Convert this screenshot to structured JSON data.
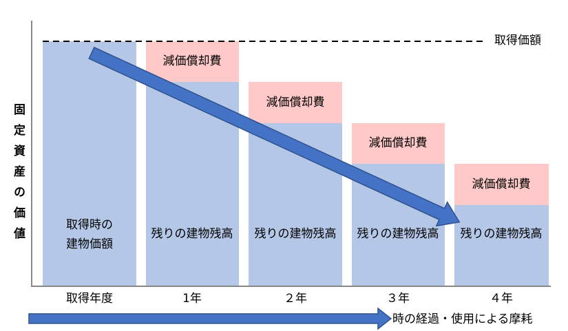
{
  "y_axis_label": "固定資産の価値",
  "reference_label": "取得価額",
  "x_axis_label": "時の経過・使用による摩耗",
  "columns": [
    {
      "category": "取得年度",
      "base_label": [
        "取得時の",
        "建物価額"
      ]
    },
    {
      "category": "1年",
      "base_label": "残りの建物残高",
      "top_label": "減価償却費"
    },
    {
      "category": "２年",
      "base_label": "残りの建物残高",
      "top_label": "減価償却費"
    },
    {
      "category": "３年",
      "base_label": "残りの建物残高",
      "top_label": "減価償却費"
    },
    {
      "category": "４年",
      "base_label": "残りの建物残高",
      "top_label": "減価償却費"
    }
  ]
}
